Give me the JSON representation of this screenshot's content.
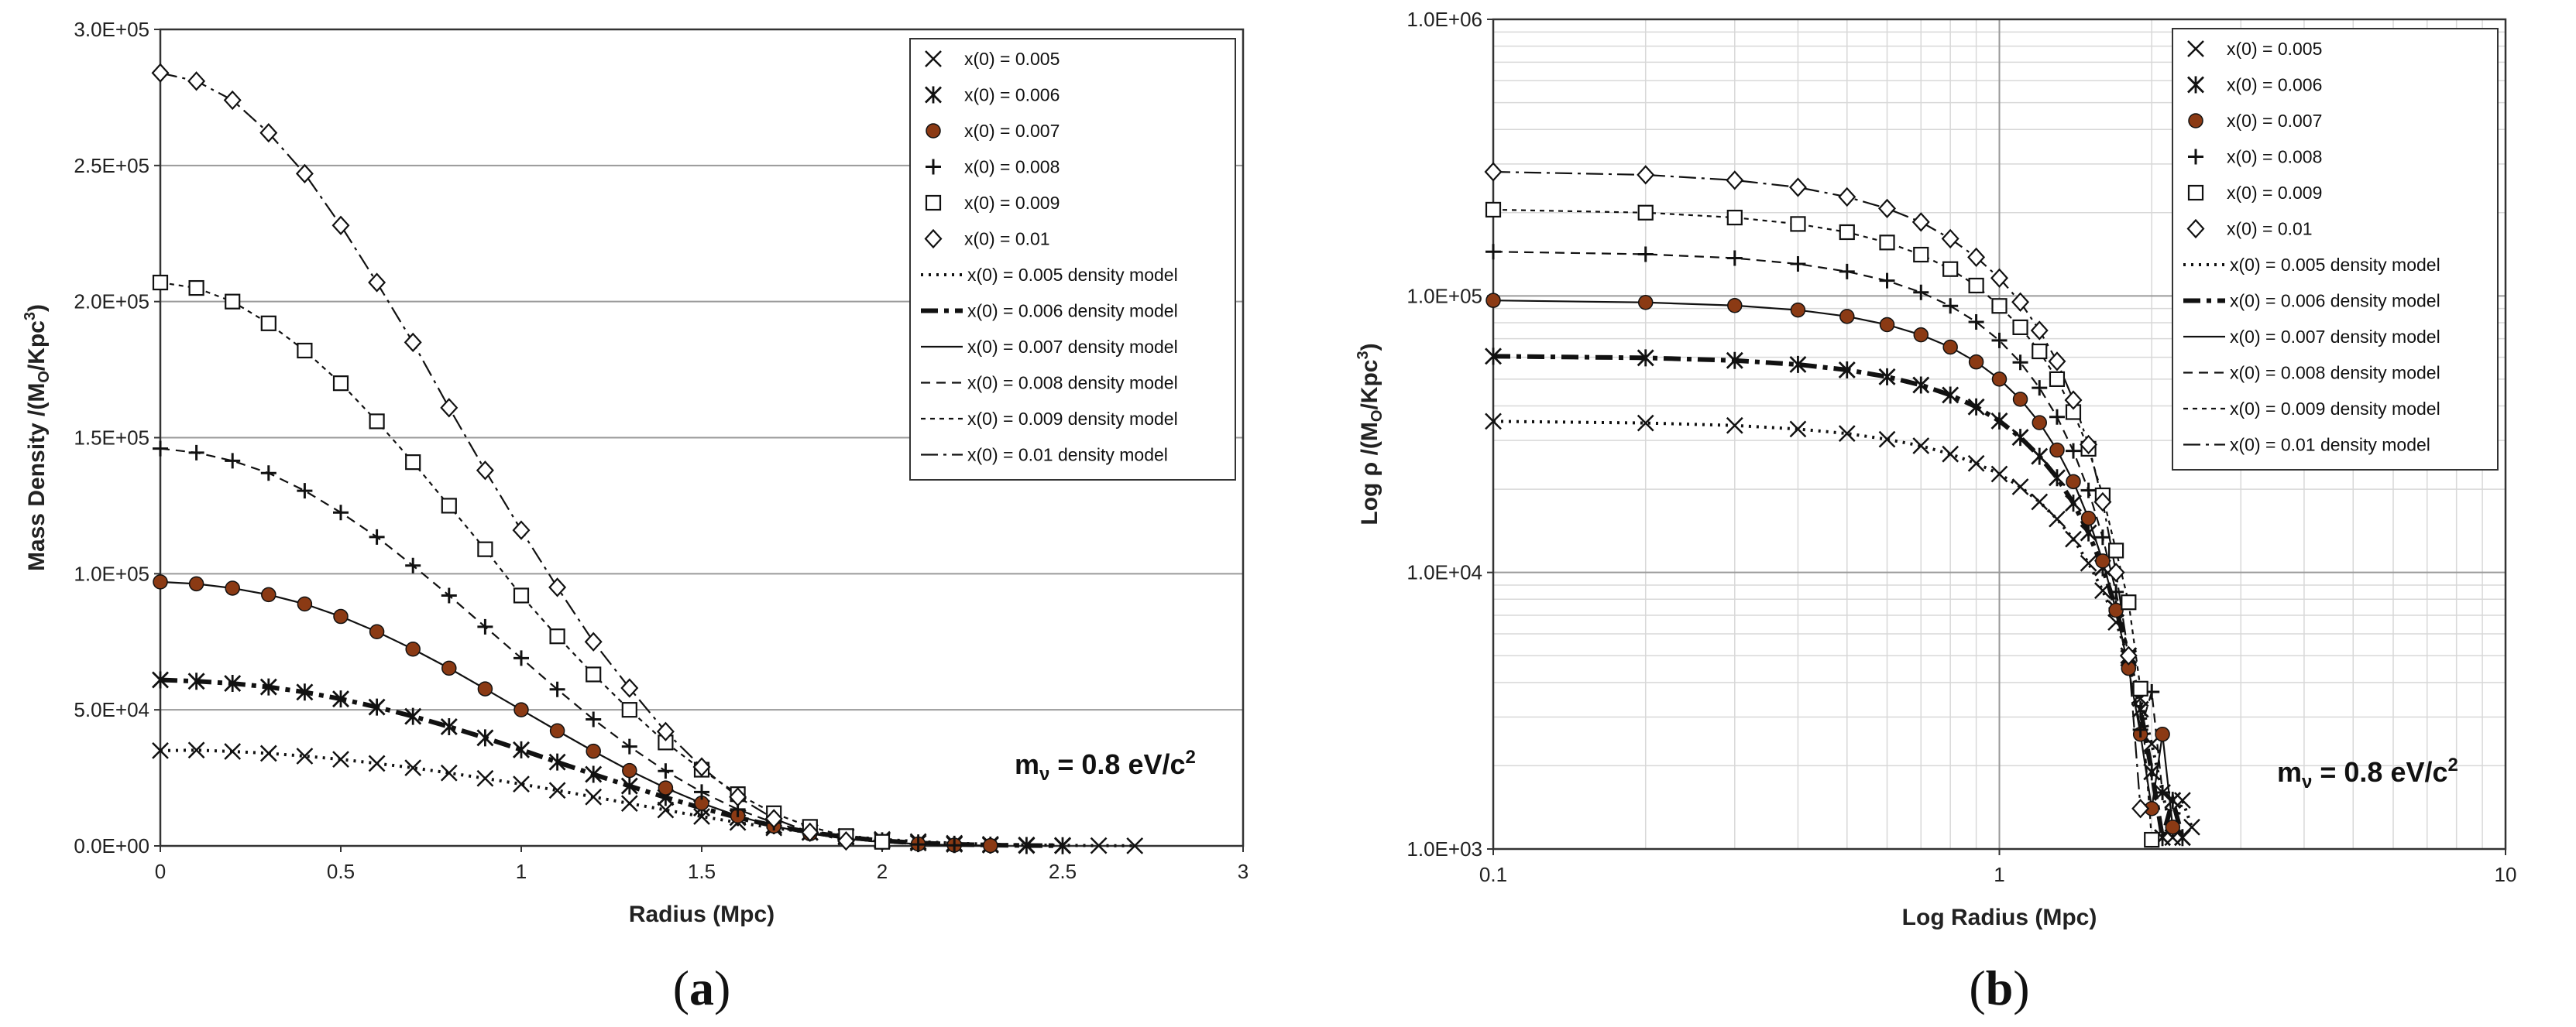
{
  "chart_data": [
    {
      "type": "scatter",
      "panel": "(a)",
      "panel_open": "(",
      "panel_letter": "a",
      "panel_close": ")",
      "xlabel": "Radius (Mpc)",
      "ylabel": "Mass Density /(M",
      "ylabel_sub": "O",
      "ylabel_mid": "/Kpc",
      "ylabel_sup": "3",
      "ylabel_end": ")",
      "xlim": [
        0,
        3
      ],
      "ylim": [
        0,
        300000
      ],
      "x_ticks": [
        0,
        0.5,
        1,
        1.5,
        2,
        2.5,
        3
      ],
      "x_tick_labels": [
        "0",
        "0.5",
        "1",
        "1.5",
        "2",
        "2.5",
        "3"
      ],
      "y_ticks": [
        0,
        50000,
        100000,
        150000,
        200000,
        250000,
        300000
      ],
      "y_tick_labels": [
        "0.0E+00",
        "5.0E+04",
        "1.0E+05",
        "1.5E+05",
        "2.0E+05",
        "2.5E+05",
        "3.0E+05"
      ],
      "grid": "horizontal",
      "legend_position": "top-right",
      "annotation": {
        "main": "m",
        "sub": "ν",
        "rest": " = 0.8 eV/c",
        "sup": "2"
      },
      "series": [
        {
          "name": "x(0) = 0.005",
          "marker": "x",
          "x": [
            0,
            0.1,
            0.2,
            0.3,
            0.4,
            0.5,
            0.6,
            0.7,
            0.8,
            0.9,
            1.0,
            1.1,
            1.2,
            1.3,
            1.4,
            1.5,
            1.6,
            1.7,
            1.8,
            1.9,
            2.0,
            2.1,
            2.2,
            2.3,
            2.4,
            2.5,
            2.6,
            2.7
          ],
          "values": [
            35000,
            35200,
            34700,
            34000,
            33000,
            31800,
            30300,
            28700,
            26800,
            24800,
            22700,
            20400,
            18000,
            15600,
            13200,
            10800,
            8600,
            6600,
            4900,
            3500,
            2400,
            1600,
            1000,
            600,
            350,
            200,
            100,
            50
          ]
        },
        {
          "name": "x(0) = 0.006",
          "marker": "asterisk",
          "x": [
            0,
            0.1,
            0.2,
            0.3,
            0.4,
            0.5,
            0.6,
            0.7,
            0.8,
            0.9,
            1.0,
            1.1,
            1.2,
            1.3,
            1.4,
            1.5,
            1.6,
            1.7,
            1.8,
            1.9,
            2.0,
            2.1,
            2.2,
            2.3,
            2.4,
            2.5
          ],
          "values": [
            61000,
            60500,
            59700,
            58400,
            56500,
            54000,
            51000,
            47600,
            43800,
            39700,
            35300,
            30800,
            26300,
            22000,
            17800,
            13900,
            10400,
            7400,
            5000,
            3200,
            1900,
            1100,
            600,
            300,
            150,
            70
          ]
        },
        {
          "name": "x(0) = 0.007",
          "marker": "circle",
          "x": [
            0,
            0.1,
            0.2,
            0.3,
            0.4,
            0.5,
            0.6,
            0.7,
            0.8,
            0.9,
            1.0,
            1.1,
            1.2,
            1.3,
            1.4,
            1.5,
            1.6,
            1.7,
            1.8,
            1.9,
            2.0,
            2.1,
            2.2,
            2.3
          ],
          "values": [
            97000,
            96300,
            94700,
            92300,
            88900,
            84300,
            78700,
            72300,
            65300,
            57700,
            50000,
            42300,
            34800,
            27700,
            21300,
            15700,
            11000,
            7300,
            4500,
            2600,
            1400,
            700,
            300,
            120
          ]
        },
        {
          "name": "x(0) = 0.008",
          "marker": "plus",
          "x": [
            0,
            0.1,
            0.2,
            0.3,
            0.4,
            0.5,
            0.6,
            0.7,
            0.8,
            0.9,
            1.0,
            1.1,
            1.2,
            1.3,
            1.4,
            1.5,
            1.6,
            1.7,
            1.8,
            1.9,
            2.0,
            2.1,
            2.2
          ],
          "values": [
            146000,
            144500,
            141500,
            137000,
            130500,
            122500,
            113500,
            103000,
            92000,
            80500,
            69000,
            57500,
            46500,
            36500,
            27500,
            19800,
            13400,
            8500,
            5000,
            2700,
            1300,
            550,
            200
          ]
        },
        {
          "name": "x(0) = 0.009",
          "marker": "square",
          "x": [
            0,
            0.1,
            0.2,
            0.3,
            0.4,
            0.5,
            0.6,
            0.7,
            0.8,
            0.9,
            1.0,
            1.1,
            1.2,
            1.3,
            1.4,
            1.5,
            1.6,
            1.7,
            1.8,
            1.9,
            2.0
          ],
          "values": [
            207000,
            205000,
            200000,
            192000,
            182000,
            170000,
            156000,
            141000,
            125000,
            109000,
            92000,
            77000,
            63000,
            50000,
            38000,
            28000,
            19000,
            12000,
            7000,
            3600,
            1500
          ]
        },
        {
          "name": "x(0) = 0.01",
          "marker": "diamond",
          "x": [
            0,
            0.1,
            0.2,
            0.3,
            0.4,
            0.5,
            0.6,
            0.7,
            0.8,
            0.9,
            1.0,
            1.1,
            1.2,
            1.3,
            1.4,
            1.5,
            1.6,
            1.7,
            1.8,
            1.9
          ],
          "values": [
            284000,
            281000,
            274000,
            262000,
            247000,
            228000,
            207000,
            185000,
            161000,
            138000,
            116000,
            95000,
            75000,
            58000,
            42000,
            29000,
            18000,
            10000,
            5000,
            1800
          ]
        }
      ],
      "model_legend": [
        "x(0) = 0.005 density model",
        "x(0) = 0.006 density model",
        "x(0) = 0.007 density model",
        "x(0) = 0.008 density model",
        "x(0) = 0.009 density model",
        "x(0) = 0.01 density model"
      ]
    },
    {
      "type": "scatter",
      "panel": "(b)",
      "panel_open": "(",
      "panel_letter": "b",
      "panel_close": ")",
      "xlabel": "Log Radius (Mpc)",
      "ylabel": "Log ρ /(M",
      "ylabel_sub": "O",
      "ylabel_mid": "/Kpc",
      "ylabel_sup": "3",
      "ylabel_end": ")",
      "xscale": "log",
      "yscale": "log",
      "xlim": [
        0.1,
        10
      ],
      "ylim": [
        1000,
        1000000
      ],
      "x_ticks": [
        0.1,
        1,
        10
      ],
      "x_tick_labels": [
        "0.1",
        "1",
        "10"
      ],
      "y_ticks": [
        1000,
        10000,
        100000,
        1000000
      ],
      "y_tick_labels": [
        "1.0E+03",
        "1.0E+04",
        "1.0E+05",
        "1.0E+06"
      ],
      "grid": "both-minor",
      "legend_position": "top-right",
      "annotation": {
        "main": "m",
        "sub": "ν",
        "rest": " = 0.8 eV/c",
        "sup": "2"
      },
      "series": [
        {
          "name": "x(0) = 0.005",
          "marker": "x",
          "x": [
            0.1,
            0.2,
            0.3,
            0.4,
            0.5,
            0.6,
            0.7,
            0.8,
            0.9,
            1.0,
            1.1,
            1.2,
            1.3,
            1.4,
            1.5,
            1.6,
            1.7,
            1.8,
            1.9,
            2.0,
            2.1,
            2.2,
            2.3,
            2.4
          ],
          "values": [
            35200,
            34700,
            34000,
            33000,
            31800,
            30300,
            28700,
            26800,
            24800,
            22700,
            20400,
            18000,
            15600,
            13200,
            10800,
            8600,
            6600,
            4900,
            3500,
            2400,
            1600,
            1100,
            1500,
            1200
          ]
        },
        {
          "name": "x(0) = 0.006",
          "marker": "asterisk",
          "x": [
            0.1,
            0.2,
            0.3,
            0.4,
            0.5,
            0.6,
            0.7,
            0.8,
            0.9,
            1.0,
            1.1,
            1.2,
            1.3,
            1.4,
            1.5,
            1.6,
            1.7,
            1.8,
            1.9,
            2.0,
            2.1,
            2.2,
            2.3
          ],
          "values": [
            60500,
            59700,
            58400,
            56500,
            54000,
            51000,
            47600,
            43800,
            39700,
            35300,
            30800,
            26300,
            22000,
            17800,
            13900,
            10400,
            7400,
            5000,
            3200,
            1900,
            1100,
            1500,
            1100
          ]
        },
        {
          "name": "x(0) = 0.007",
          "marker": "circle",
          "x": [
            0.1,
            0.2,
            0.3,
            0.4,
            0.5,
            0.6,
            0.7,
            0.8,
            0.9,
            1.0,
            1.1,
            1.2,
            1.3,
            1.4,
            1.5,
            1.6,
            1.7,
            1.8,
            1.9,
            2.0,
            2.1,
            2.2
          ],
          "values": [
            96300,
            94700,
            92300,
            88900,
            84300,
            78700,
            72300,
            65300,
            57700,
            50000,
            42300,
            34800,
            27700,
            21300,
            15700,
            11000,
            7300,
            4500,
            2600,
            1400,
            2600,
            1200
          ]
        },
        {
          "name": "x(0) = 0.008",
          "marker": "plus",
          "x": [
            0.1,
            0.2,
            0.3,
            0.4,
            0.5,
            0.6,
            0.7,
            0.8,
            0.9,
            1.0,
            1.1,
            1.2,
            1.3,
            1.4,
            1.5,
            1.6,
            1.7,
            1.8,
            1.9,
            2.0,
            2.1
          ],
          "values": [
            144500,
            141500,
            137000,
            130500,
            122500,
            113500,
            103000,
            92000,
            80500,
            69000,
            57500,
            46500,
            36500,
            27500,
            19800,
            13400,
            8500,
            5000,
            2700,
            3700,
            1600
          ]
        },
        {
          "name": "x(0) = 0.009",
          "marker": "square",
          "x": [
            0.1,
            0.2,
            0.3,
            0.4,
            0.5,
            0.6,
            0.7,
            0.8,
            0.9,
            1.0,
            1.1,
            1.2,
            1.3,
            1.4,
            1.5,
            1.6,
            1.7,
            1.8,
            1.9,
            2.0
          ],
          "values": [
            205000,
            200000,
            192000,
            182000,
            170000,
            156000,
            141000,
            125000,
            109000,
            92000,
            77000,
            63000,
            50000,
            38000,
            28000,
            19000,
            12000,
            7800,
            3800,
            1080
          ]
        },
        {
          "name": "x(0) = 0.01",
          "marker": "diamond",
          "x": [
            0.1,
            0.2,
            0.3,
            0.4,
            0.5,
            0.6,
            0.7,
            0.8,
            0.9,
            1.0,
            1.1,
            1.2,
            1.3,
            1.4,
            1.5,
            1.6,
            1.7,
            1.8,
            1.9
          ],
          "values": [
            281000,
            274000,
            262000,
            247000,
            228000,
            207000,
            185000,
            161000,
            138000,
            116000,
            95000,
            75000,
            58000,
            42000,
            29000,
            18000,
            10000,
            5000,
            1400
          ]
        }
      ],
      "model_legend": [
        "x(0) = 0.005 density model",
        "x(0) = 0.006 density model",
        "x(0) = 0.007 density model",
        "x(0) = 0.008 density model",
        "x(0) = 0.009 density model",
        "x(0) = 0.01 density model"
      ]
    }
  ],
  "styles": {
    "marker_circle_fill": "#8b3a14",
    "axis_color": "#333333",
    "grid_color": "#9a9a9a",
    "minor_grid_color": "#d8d8d8"
  }
}
